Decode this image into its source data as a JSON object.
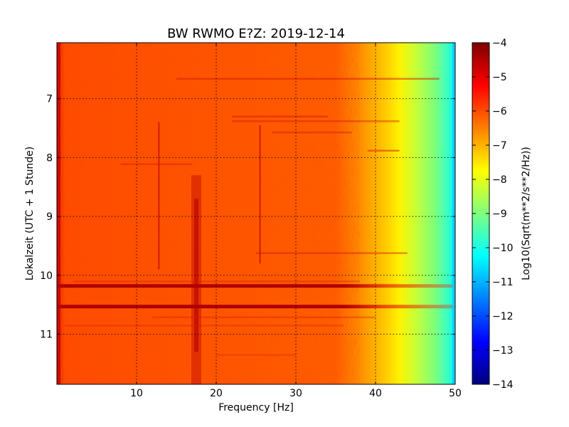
{
  "chart_data": {
    "type": "heatmap",
    "title": "BW RWMO E?Z: 2019-12-14",
    "xlabel": "Frequency [Hz]",
    "ylabel": "Lokalzeit (UTC + 1 Stunde)",
    "xlim": [
      0,
      50
    ],
    "ylim": [
      6.05,
      11.85
    ],
    "x_ticks": [
      10,
      20,
      30,
      40,
      50
    ],
    "y_ticks": [
      7,
      8,
      9,
      10,
      11
    ],
    "grid": true,
    "y_axis_inverted": true,
    "colorbar": {
      "label": "Log10(Sqrt(m**2/s**2/Hz))",
      "range": [
        -14,
        -4
      ],
      "ticks": [
        -4,
        -5,
        -6,
        -7,
        -8,
        -9,
        -10,
        -11,
        -12,
        -13,
        -14
      ],
      "colormap": "jet"
    },
    "features": {
      "background_level": -6,
      "rolloff_start_hz": 38,
      "rolloff_end_hz": 50,
      "edge_level_at_50hz": -10.5,
      "strong_horizontal_bands_hours": [
        10.18,
        10.53
      ],
      "vertical_lines_hz": [
        12.8,
        25.5
      ],
      "broad_vertical_band_hz": 17.5
    }
  }
}
